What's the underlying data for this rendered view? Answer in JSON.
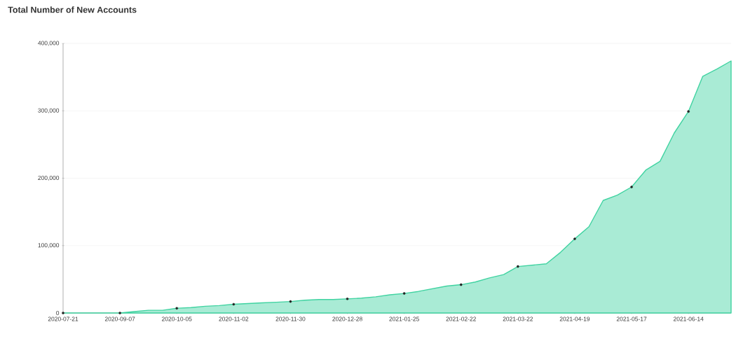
{
  "chart_data": {
    "type": "area",
    "title": "Total Number of New Accounts",
    "categories": [
      "2020-07-21",
      null,
      null,
      null,
      "2020-09-07",
      null,
      null,
      null,
      "2020-10-05",
      null,
      null,
      null,
      "2020-11-02",
      null,
      null,
      null,
      "2020-11-30",
      null,
      null,
      null,
      "2020-12-28",
      null,
      null,
      null,
      "2021-01-25",
      null,
      null,
      null,
      "2021-02-22",
      null,
      null,
      null,
      "2021-03-22",
      null,
      null,
      null,
      "2021-04-19",
      null,
      null,
      null,
      "2021-05-17",
      null,
      null,
      null,
      "2021-06-14",
      null,
      null,
      null
    ],
    "series": [
      {
        "color": "#40d3a1",
        "values": [
          0,
          0,
          0,
          0,
          0,
          2000,
          4000,
          4000,
          7000,
          8000,
          10000,
          11000,
          13000,
          14000,
          15000,
          16000,
          17000,
          19000,
          20000,
          20000,
          21000,
          22000,
          24000,
          27000,
          29000,
          32000,
          36000,
          40000,
          42000,
          46000,
          52000,
          57000,
          69000,
          71000,
          73000,
          90000,
          110000,
          128000,
          167000,
          175000,
          187000,
          212000,
          225000,
          267000,
          299000,
          351000,
          362000,
          374000
        ]
      },
      {
        "type": "scatter",
        "color": "#222222",
        "marker": "circle",
        "values": [
          0,
          null,
          null,
          null,
          0,
          null,
          null,
          null,
          7000,
          null,
          null,
          null,
          13000,
          null,
          null,
          null,
          17000,
          null,
          null,
          null,
          21000,
          null,
          null,
          null,
          29000,
          null,
          null,
          null,
          42000,
          null,
          null,
          null,
          69000,
          null,
          null,
          null,
          110000,
          null,
          null,
          null,
          187000,
          null,
          null,
          null,
          299000,
          null,
          null,
          null
        ]
      }
    ],
    "ylim": [
      0,
      400000
    ],
    "yticks": [
      0,
      {
        "value": 100000,
        "label": "100,000"
      },
      {
        "value": 200000,
        "label": "200,000"
      },
      {
        "value": 300000,
        "label": "300,000"
      },
      {
        "value": 400000,
        "label": "400,000"
      }
    ],
    "grid": "y"
  }
}
